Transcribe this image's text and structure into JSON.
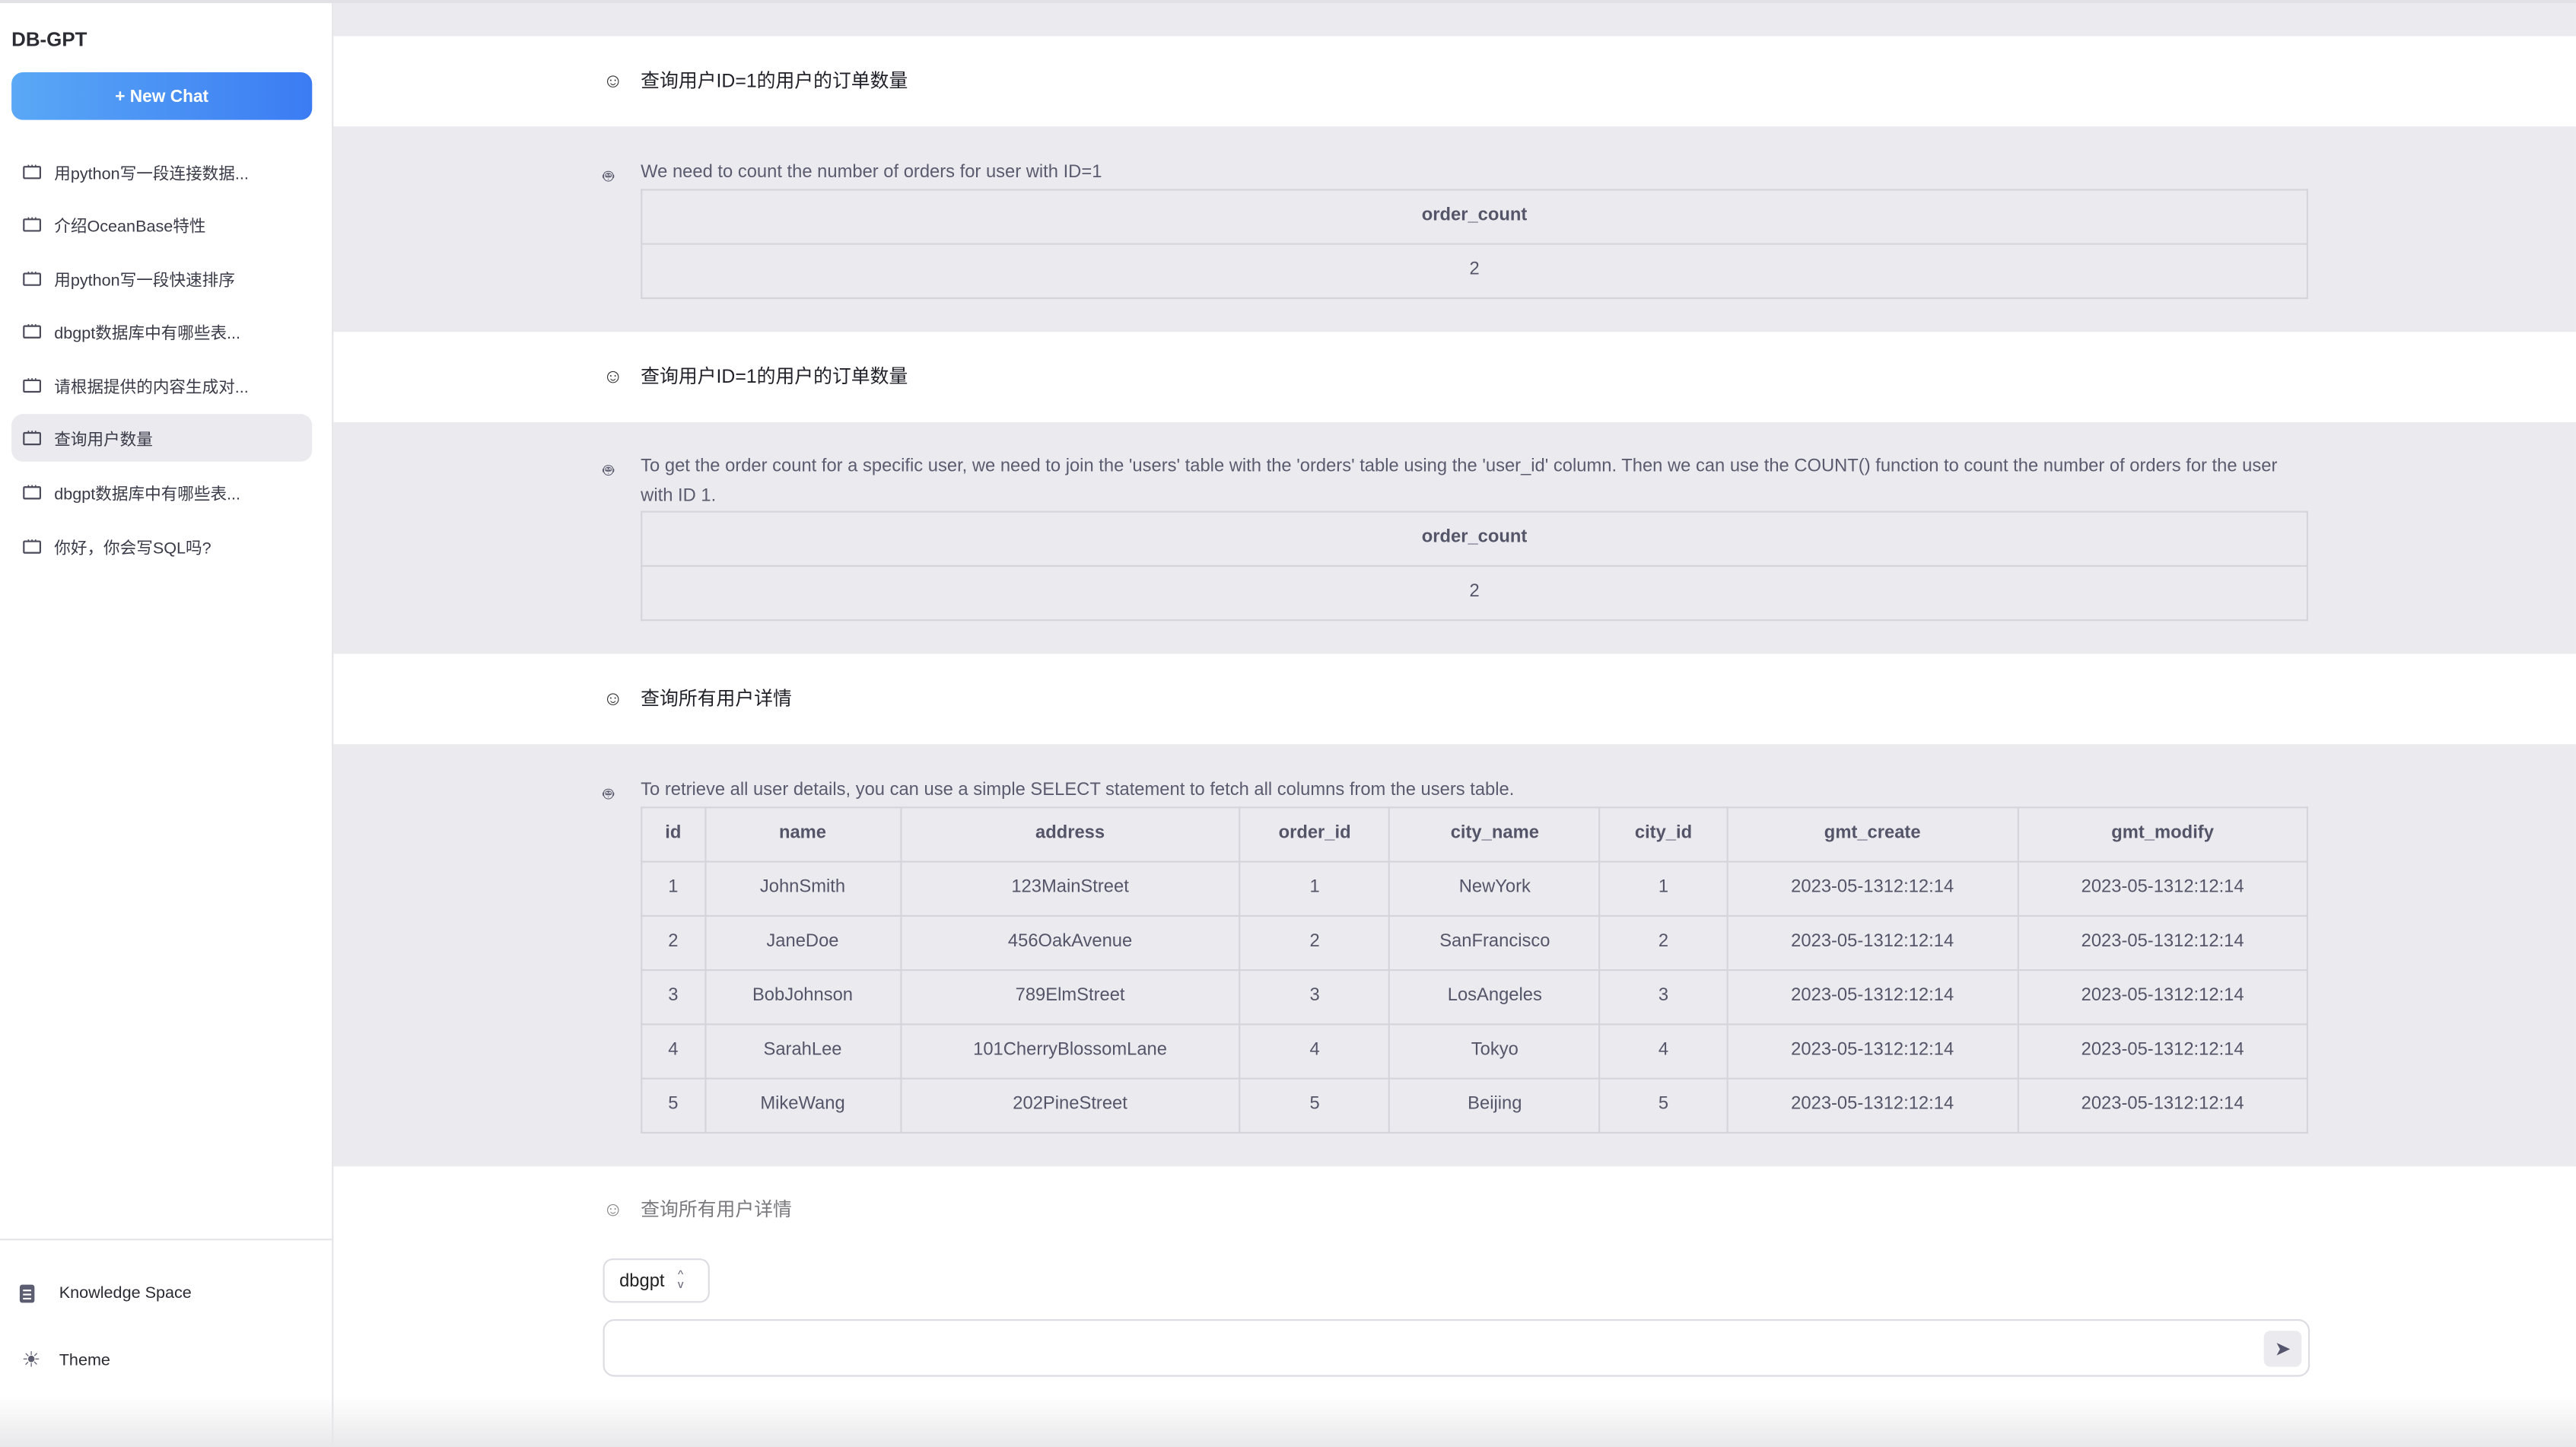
{
  "app": {
    "title": "DB-GPT",
    "new_chat": "+ New Chat"
  },
  "sidebar": {
    "items": [
      {
        "label": "用python写一段连接数据..."
      },
      {
        "label": "介绍OceanBase特性"
      },
      {
        "label": "用python写一段快速排序"
      },
      {
        "label": "dbgpt数据库中有哪些表..."
      },
      {
        "label": "请根据提供的内容生成对..."
      },
      {
        "label": "查询用户数量",
        "selected": true
      },
      {
        "label": "dbgpt数据库中有哪些表..."
      },
      {
        "label": "你好，你会写SQL吗?"
      }
    ],
    "bottom": {
      "knowledge": "Knowledge Space",
      "theme": "Theme"
    }
  },
  "chat": [
    {
      "question": "查询用户ID=1的用户的订单数量",
      "answer": "We need to count the number of orders for user with ID=1",
      "table": {
        "headers": [
          "order_count"
        ],
        "rows": [
          [
            "2"
          ]
        ]
      }
    },
    {
      "question": "查询用户ID=1的用户的订单数量",
      "answer": "To get the order count for a specific user, we need to join the 'users' table with the 'orders' table using the 'user_id' column. Then we can use the COUNT() function to count the number of orders for the user with ID 1.",
      "table": {
        "headers": [
          "order_count"
        ],
        "rows": [
          [
            "2"
          ]
        ]
      }
    },
    {
      "question": "查询所有用户详情",
      "answer": "To retrieve all user details, you can use a simple SELECT statement to fetch all columns from the users table.",
      "table": {
        "headers": [
          "id",
          "name",
          "address",
          "order_id",
          "city_name",
          "city_id",
          "gmt_create",
          "gmt_modify"
        ],
        "rows": [
          [
            "1",
            "JohnSmith",
            "123MainStreet",
            "1",
            "NewYork",
            "1",
            "2023-05-1312:12:14",
            "2023-05-1312:12:14"
          ],
          [
            "2",
            "JaneDoe",
            "456OakAvenue",
            "2",
            "SanFrancisco",
            "2",
            "2023-05-1312:12:14",
            "2023-05-1312:12:14"
          ],
          [
            "3",
            "BobJohnson",
            "789ElmStreet",
            "3",
            "LosAngeles",
            "3",
            "2023-05-1312:12:14",
            "2023-05-1312:12:14"
          ],
          [
            "4",
            "SarahLee",
            "101CherryBlossomLane",
            "4",
            "Tokyo",
            "4",
            "2023-05-1312:12:14",
            "2023-05-1312:12:14"
          ],
          [
            "5",
            "MikeWang",
            "202PineStreet",
            "5",
            "Beijing",
            "5",
            "2023-05-1312:12:14",
            "2023-05-1312:12:14"
          ]
        ]
      }
    }
  ],
  "pending_question": "查询所有用户详情",
  "composer": {
    "db_select": "dbgpt",
    "input_value": "",
    "send_icon": "send-icon"
  },
  "colors": {
    "accent_start": "#5aa8f6",
    "accent_end": "#3b7cf3",
    "answer_bg": "#ebebef"
  }
}
